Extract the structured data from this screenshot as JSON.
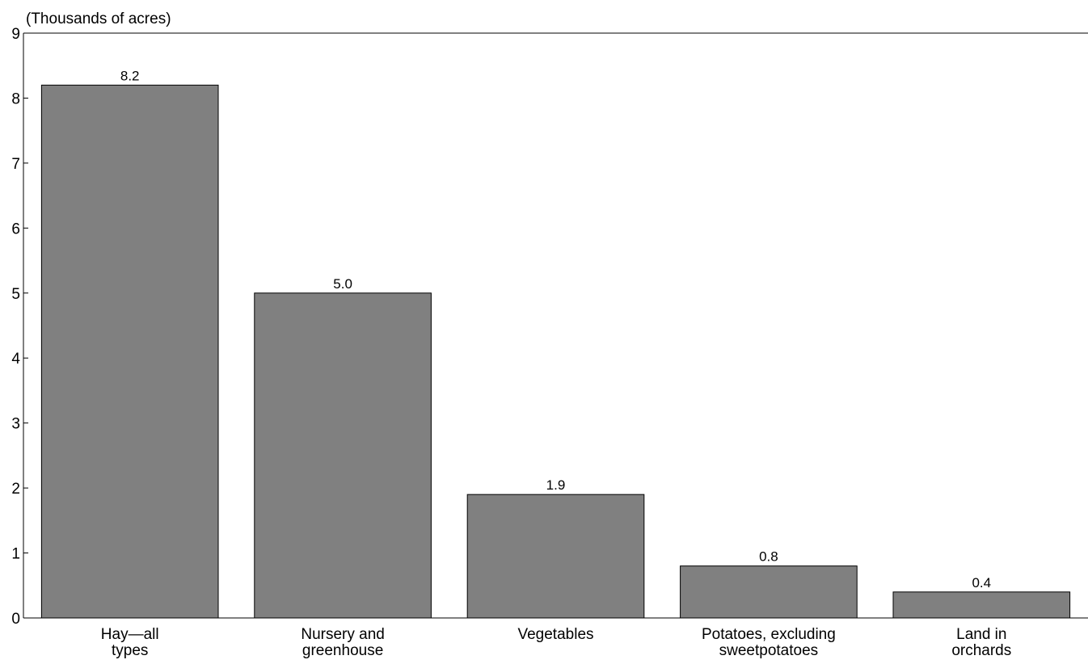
{
  "chart_data": {
    "type": "bar",
    "unit_label": "(Thousands of acres)",
    "categories": [
      [
        "Hay—all",
        "types"
      ],
      [
        "Nursery and",
        "greenhouse"
      ],
      [
        "Vegetables"
      ],
      [
        "Potatoes, excluding",
        "sweetpotatoes"
      ],
      [
        "Land in",
        "orchards"
      ]
    ],
    "values": [
      8.2,
      5.0,
      1.9,
      0.8,
      0.4
    ],
    "value_labels": [
      "8.2",
      "5.0",
      "1.9",
      "0.8",
      "0.4"
    ],
    "yticks": [
      "0",
      "1",
      "2",
      "3",
      "4",
      "5",
      "6",
      "7",
      "8",
      "9"
    ],
    "ylim": [
      0,
      9
    ],
    "bar_color": "#808080",
    "grid": false
  }
}
